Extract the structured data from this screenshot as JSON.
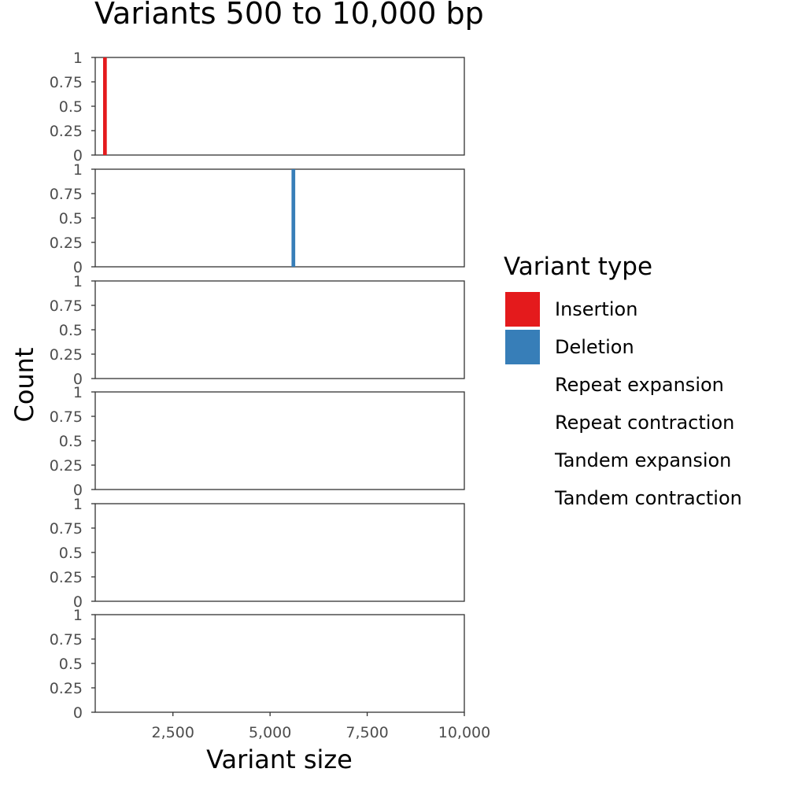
{
  "chart_data": {
    "type": "bar",
    "title": "Variants 500 to 10,000 bp",
    "xlabel": "Variant size",
    "ylabel": "Count",
    "xlim": [
      500,
      10000
    ],
    "ylim": [
      0,
      1
    ],
    "x_ticks": [
      2500,
      5000,
      7500,
      10000
    ],
    "x_tick_labels": [
      "2,500",
      "5,000",
      "7,500",
      "10,000"
    ],
    "y_ticks": [
      0,
      0.25,
      0.5,
      0.75,
      1
    ],
    "y_tick_labels": [
      "0",
      "0.25",
      "0.5",
      "0.75",
      "1"
    ],
    "bin_width": 95,
    "grid": false,
    "legend_placement": "right",
    "legend": {
      "title": "Variant type",
      "entries": [
        {
          "label": "Insertion",
          "color": "#e41a1c"
        },
        {
          "label": "Deletion",
          "color": "#377eb8"
        },
        {
          "label": "Repeat expansion",
          "color": null
        },
        {
          "label": "Repeat contraction",
          "color": null
        },
        {
          "label": "Tandem expansion",
          "color": null
        },
        {
          "label": "Tandem contraction",
          "color": null
        }
      ]
    },
    "panels": [
      {
        "series": "Insertion",
        "color": "#e41a1c",
        "bars": [
          {
            "x": 750,
            "count": 1
          }
        ]
      },
      {
        "series": "Deletion",
        "color": "#377eb8",
        "bars": [
          {
            "x": 5600,
            "count": 1
          }
        ]
      },
      {
        "series": "Repeat expansion",
        "color": null,
        "bars": []
      },
      {
        "series": "Repeat contraction",
        "color": null,
        "bars": []
      },
      {
        "series": "Tandem expansion",
        "color": null,
        "bars": []
      },
      {
        "series": "Tandem contraction",
        "color": null,
        "bars": []
      }
    ]
  }
}
